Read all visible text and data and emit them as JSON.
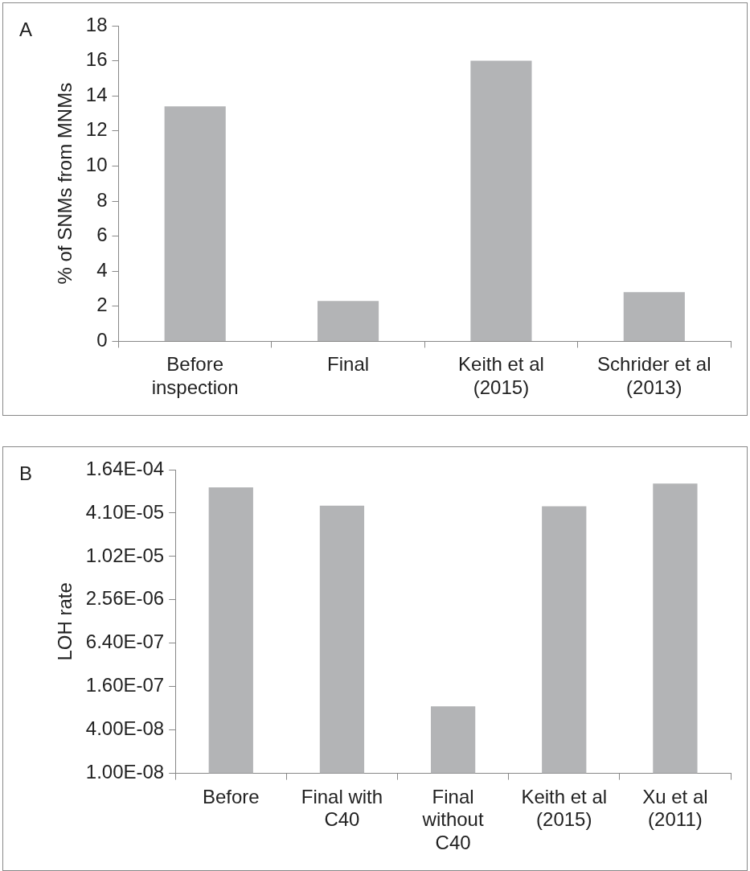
{
  "chart_data": [
    {
      "type": "bar",
      "title": "A",
      "ylabel": "% of SNMs from MNMs",
      "categories": [
        "Before inspection",
        "Final",
        "Keith et al (2015)",
        "Schrider et al (2013)"
      ],
      "values": [
        13.4,
        2.3,
        16.0,
        2.8
      ],
      "color": "#b3b4b6",
      "ylim": [
        0,
        18
      ],
      "yticks": [
        0,
        2,
        4,
        6,
        8,
        10,
        12,
        14,
        16,
        18
      ],
      "grid": false,
      "legend": false
    },
    {
      "type": "bar",
      "title": "B",
      "ylabel": "LOH rate",
      "categories": [
        "Before",
        "Final with C40",
        "Final without C40",
        "Keith et al (2015)",
        "Xu et al (2011)"
      ],
      "values": [
        9.3e-05,
        5.2e-05,
        8.5e-08,
        5.1e-05,
        0.000105
      ],
      "color": "#b3b4b6",
      "log": "y",
      "ylim": [
        1e-08,
        0.00016384
      ],
      "yticks": [
        {
          "value": 1e-08,
          "label": "1.00E-08"
        },
        {
          "value": 4e-08,
          "label": "4.00E-08"
        },
        {
          "value": 1.6e-07,
          "label": "1.60E-07"
        },
        {
          "value": 6.4e-07,
          "label": "6.40E-07"
        },
        {
          "value": 2.56e-06,
          "label": "2.56E-06"
        },
        {
          "value": 1.024e-05,
          "label": "1.02E-05"
        },
        {
          "value": 4.096e-05,
          "label": "4.10E-05"
        },
        {
          "value": 0.00016384,
          "label": "1.64E-04"
        }
      ],
      "grid": false,
      "legend": false
    }
  ]
}
